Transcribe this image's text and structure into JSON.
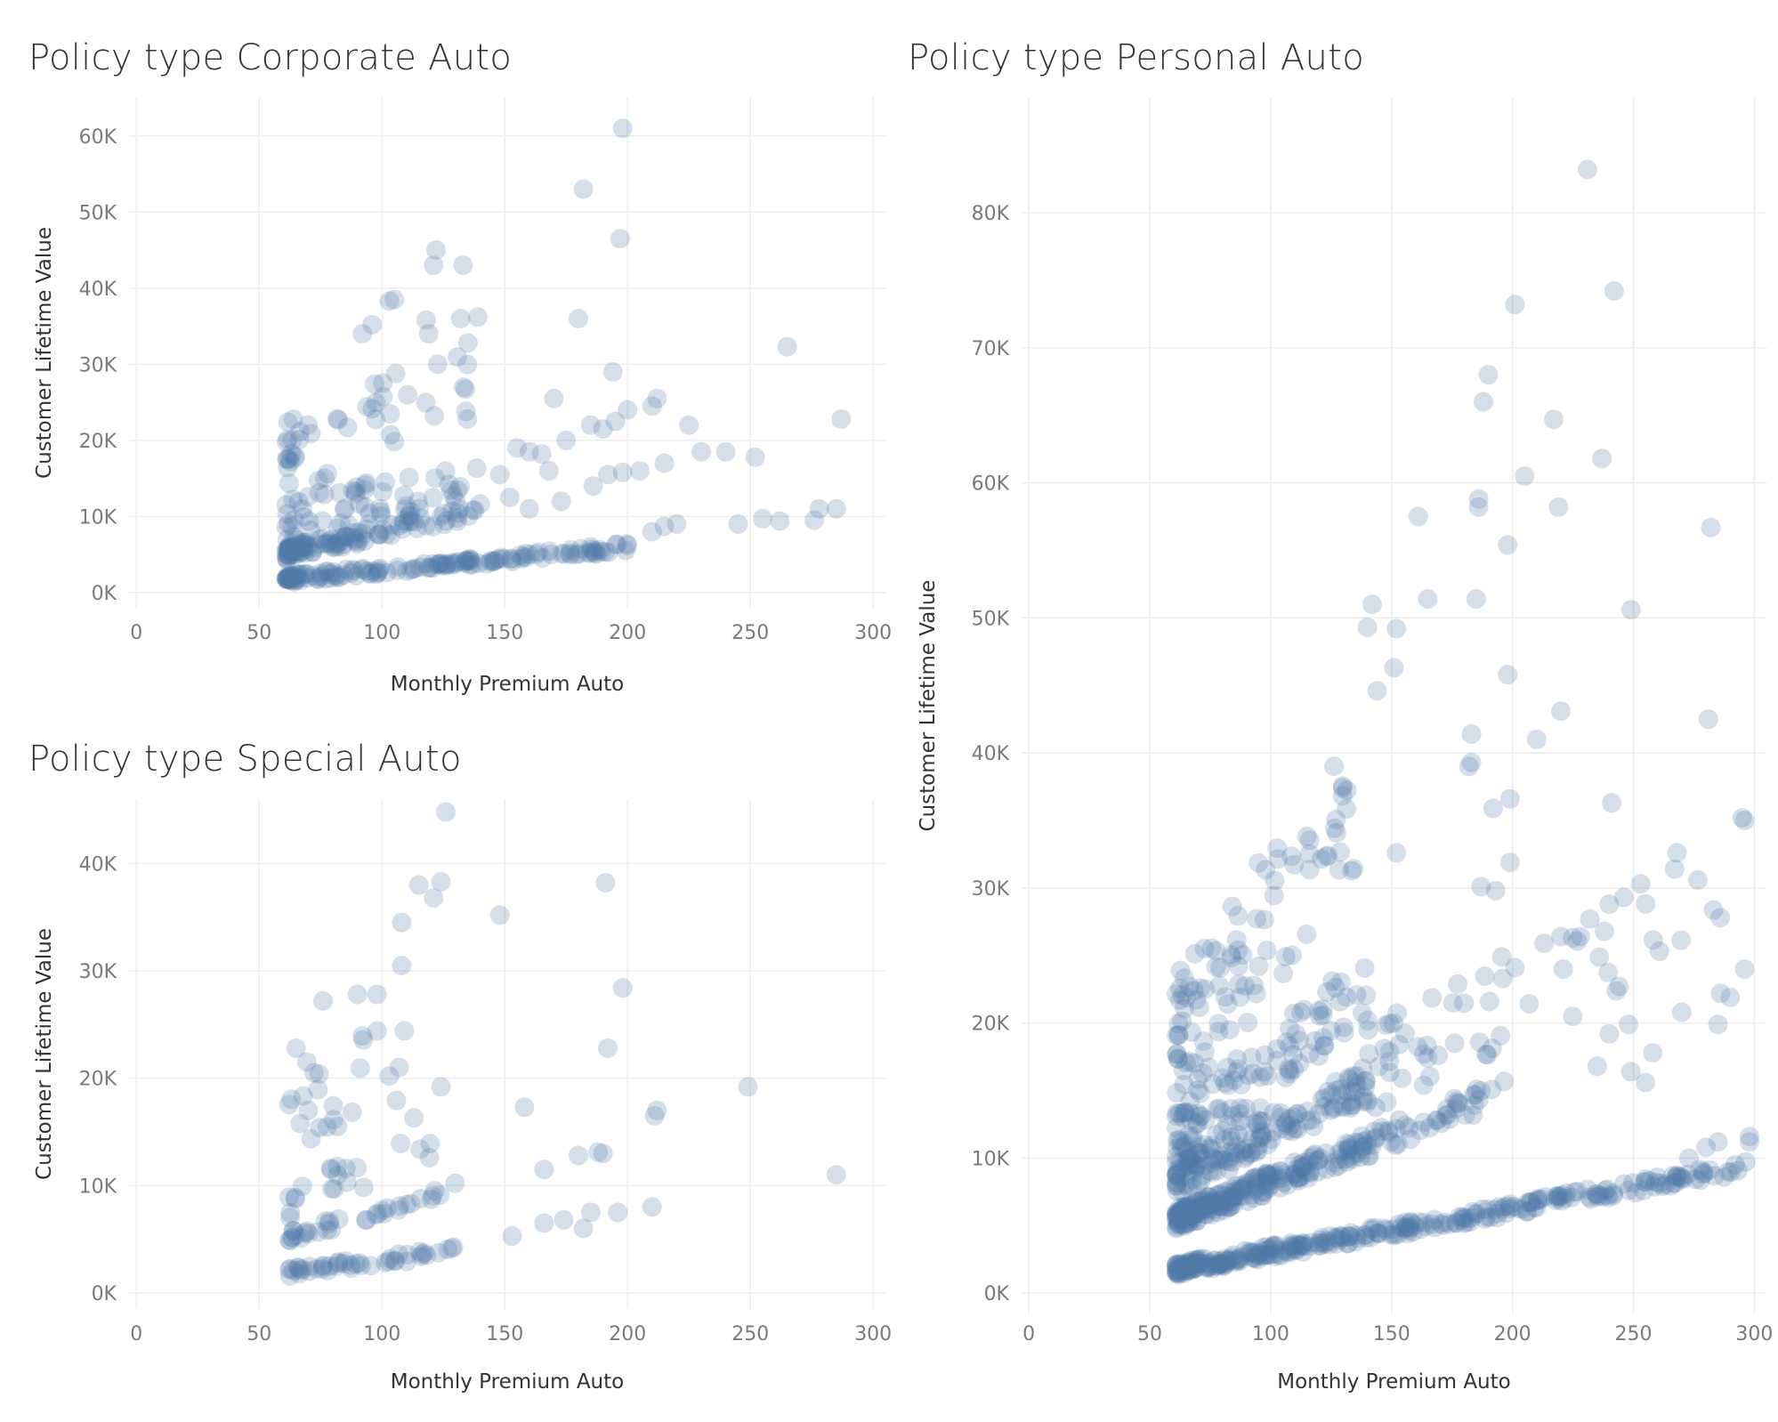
{
  "colors": {
    "marker": "#4e79a7",
    "grid": "#ededed",
    "title": "#333333",
    "tick": "#7a7a7a"
  },
  "chart_data": [
    {
      "type": "scatter",
      "id": "corporate",
      "title": "Policy type Corporate Auto",
      "xlabel": "Monthly Premium Auto",
      "ylabel": "Customer Lifetime Value",
      "xlim": [
        -3,
        305
      ],
      "ylim": [
        -2000,
        65000
      ],
      "xticks": [
        0,
        50,
        100,
        150,
        200,
        250,
        300
      ],
      "xtick_labels": [
        "0",
        "50",
        "100",
        "150",
        "200",
        "250",
        "300"
      ],
      "yticks": [
        0,
        10000,
        20000,
        30000,
        40000,
        50000,
        60000
      ],
      "ytick_labels": [
        "0K",
        "10K",
        "20K",
        "30K",
        "40K",
        "50K",
        "60K"
      ],
      "grid": true,
      "bands": [
        {
          "x0": 61,
          "x1": 200,
          "y0": 1800,
          "slope": 30,
          "n": 150,
          "jitter": 500
        },
        {
          "x0": 61,
          "x1": 140,
          "y0": 5200,
          "slope": 70,
          "n": 110,
          "jitter": 900
        },
        {
          "x0": 61,
          "x1": 140,
          "y0": 9500,
          "slope": 65,
          "n": 60,
          "jitter": 3000
        },
        {
          "x0": 61,
          "x1": 135,
          "y0": 18000,
          "slope": 130,
          "n": 45,
          "jitter": 5000
        }
      ],
      "points": [
        [
          198,
          61000
        ],
        [
          182,
          53000
        ],
        [
          197,
          46500
        ],
        [
          122,
          45000
        ],
        [
          133,
          43000
        ],
        [
          121,
          43000
        ],
        [
          105,
          38500
        ],
        [
          103,
          38300
        ],
        [
          118,
          35800
        ],
        [
          139,
          36200
        ],
        [
          132,
          36000
        ],
        [
          119,
          34000
        ],
        [
          96,
          35200
        ],
        [
          92,
          34000
        ],
        [
          135,
          32800
        ],
        [
          265,
          32300
        ],
        [
          194,
          29000
        ],
        [
          180,
          36000
        ],
        [
          160,
          18500
        ],
        [
          170,
          25500
        ],
        [
          185,
          22000
        ],
        [
          195,
          22500
        ],
        [
          210,
          24500
        ],
        [
          212,
          25500
        ],
        [
          225,
          22000
        ],
        [
          230,
          18500
        ],
        [
          240,
          18500
        ],
        [
          252,
          17800
        ],
        [
          245,
          9000
        ],
        [
          255,
          9700
        ],
        [
          262,
          9400
        ],
        [
          276,
          9500
        ],
        [
          278,
          11000
        ],
        [
          285,
          11000
        ],
        [
          287,
          22800
        ],
        [
          210,
          8000
        ],
        [
          215,
          8700
        ],
        [
          220,
          9000
        ],
        [
          175,
          20000
        ],
        [
          190,
          21500
        ],
        [
          200,
          24000
        ],
        [
          165,
          18200
        ],
        [
          168,
          16000
        ],
        [
          186,
          14000
        ],
        [
          192,
          15500
        ],
        [
          198,
          15800
        ],
        [
          205,
          16000
        ],
        [
          215,
          17000
        ],
        [
          173,
          12000
        ],
        [
          160,
          11000
        ],
        [
          152,
          12500
        ],
        [
          148,
          15500
        ],
        [
          155,
          19000
        ]
      ]
    },
    {
      "type": "scatter",
      "id": "special",
      "title": "Policy type Special Auto",
      "xlabel": "Monthly Premium Auto",
      "ylabel": "Customer Lifetime Value",
      "xlim": [
        -3,
        305
      ],
      "ylim": [
        -1500,
        46000
      ],
      "xticks": [
        0,
        50,
        100,
        150,
        200,
        250,
        300
      ],
      "xtick_labels": [
        "0",
        "50",
        "100",
        "150",
        "200",
        "250",
        "300"
      ],
      "yticks": [
        0,
        10000,
        20000,
        30000,
        40000
      ],
      "ytick_labels": [
        "0K",
        "10K",
        "20K",
        "30K",
        "40K"
      ],
      "grid": true,
      "bands": [
        {
          "x0": 62,
          "x1": 140,
          "y0": 1900,
          "slope": 29,
          "n": 45,
          "jitter": 400
        },
        {
          "x0": 62,
          "x1": 130,
          "y0": 5000,
          "slope": 68,
          "n": 35,
          "jitter": 700
        },
        {
          "x0": 62,
          "x1": 120,
          "y0": 8500,
          "slope": 80,
          "n": 20,
          "jitter": 1800
        },
        {
          "x0": 62,
          "x1": 110,
          "y0": 17000,
          "slope": 100,
          "n": 20,
          "jitter": 4000
        }
      ],
      "points": [
        [
          126,
          44800
        ],
        [
          115,
          38000
        ],
        [
          124,
          38300
        ],
        [
          191,
          38200
        ],
        [
          121,
          36800
        ],
        [
          108,
          34500
        ],
        [
          148,
          35200
        ],
        [
          108,
          30500
        ],
        [
          198,
          28400
        ],
        [
          192,
          22800
        ],
        [
          98,
          27800
        ],
        [
          90,
          27800
        ],
        [
          76,
          27200
        ],
        [
          249,
          19200
        ],
        [
          211,
          16500
        ],
        [
          212,
          17000
        ],
        [
          158,
          17300
        ],
        [
          166,
          11500
        ],
        [
          180,
          12800
        ],
        [
          188,
          13100
        ],
        [
          190,
          13000
        ],
        [
          174,
          6800
        ],
        [
          182,
          6000
        ],
        [
          185,
          7500
        ],
        [
          196,
          7500
        ],
        [
          210,
          8000
        ],
        [
          166,
          6500
        ],
        [
          153,
          5300
        ],
        [
          285,
          11000
        ],
        [
          124,
          19200
        ],
        [
          98,
          24400
        ],
        [
          103,
          20200
        ],
        [
          107,
          21000
        ],
        [
          113,
          16300
        ],
        [
          65,
          22800
        ],
        [
          70,
          17000
        ]
      ]
    },
    {
      "type": "scatter",
      "id": "personal",
      "title": "Policy type Personal Auto",
      "xlabel": "Monthly Premium Auto",
      "ylabel": "Customer Lifetime Value",
      "xlim": [
        -3,
        305
      ],
      "ylim": [
        -1500,
        88500
      ],
      "xticks": [
        0,
        50,
        100,
        150,
        200,
        250,
        300
      ],
      "xtick_labels": [
        "0",
        "50",
        "100",
        "150",
        "200",
        "250",
        "300"
      ],
      "yticks": [
        0,
        10000,
        20000,
        30000,
        40000,
        50000,
        60000,
        70000,
        80000
      ],
      "ytick_labels": [
        "0K",
        "10K",
        "20K",
        "30K",
        "40K",
        "50K",
        "60K",
        "70K",
        "80K"
      ],
      "grid": true,
      "bands": [
        {
          "x0": 61,
          "x1": 298,
          "y0": 1800,
          "slope": 32,
          "n": 330,
          "jitter": 450
        },
        {
          "x0": 61,
          "x1": 140,
          "y0": 5500,
          "slope": 70,
          "n": 230,
          "jitter": 800
        },
        {
          "x0": 61,
          "x1": 140,
          "y0": 8500,
          "slope": 90,
          "n": 140,
          "jitter": 1300
        },
        {
          "x0": 61,
          "x1": 140,
          "y0": 11000,
          "slope": 150,
          "n": 110,
          "jitter": 2600
        },
        {
          "x0": 61,
          "x1": 135,
          "y0": 18000,
          "slope": 250,
          "n": 100,
          "jitter": 5500
        },
        {
          "x0": 140,
          "x1": 200,
          "y0": 5500,
          "slope": 70,
          "n": 45,
          "jitter": 1000
        },
        {
          "x0": 140,
          "x1": 298,
          "y0": 10000,
          "slope": 85,
          "n": 55,
          "jitter": 3500
        }
      ],
      "points": [
        [
          231,
          83200
        ],
        [
          242,
          74200
        ],
        [
          201,
          73200
        ],
        [
          190,
          68000
        ],
        [
          188,
          66000
        ],
        [
          217,
          64700
        ],
        [
          237,
          61800
        ],
        [
          205,
          60500
        ],
        [
          161,
          57500
        ],
        [
          186,
          58800
        ],
        [
          186,
          58200
        ],
        [
          219,
          58200
        ],
        [
          282,
          56700
        ],
        [
          198,
          55400
        ],
        [
          165,
          51400
        ],
        [
          185,
          51400
        ],
        [
          249,
          50600
        ],
        [
          142,
          51000
        ],
        [
          152,
          49200
        ],
        [
          140,
          49300
        ],
        [
          151,
          46300
        ],
        [
          144,
          44600
        ],
        [
          198,
          45800
        ],
        [
          220,
          43100
        ],
        [
          281,
          42500
        ],
        [
          183,
          41400
        ],
        [
          210,
          41000
        ],
        [
          182,
          39000
        ],
        [
          183,
          39300
        ],
        [
          192,
          35900
        ],
        [
          199,
          36600
        ],
        [
          241,
          36300
        ],
        [
          295,
          35200
        ],
        [
          296,
          35000
        ],
        [
          152,
          32600
        ],
        [
          199,
          31900
        ],
        [
          268,
          32600
        ],
        [
          253,
          30300
        ],
        [
          267,
          31400
        ],
        [
          187,
          30100
        ],
        [
          193,
          29800
        ],
        [
          246,
          29300
        ],
        [
          240,
          28800
        ],
        [
          232,
          27700
        ],
        [
          238,
          26800
        ],
        [
          220,
          26400
        ],
        [
          228,
          26400
        ],
        [
          213,
          25900
        ],
        [
          201,
          24100
        ],
        [
          196,
          23300
        ],
        [
          296,
          24000
        ],
        [
          286,
          22200
        ],
        [
          290,
          21900
        ],
        [
          270,
          20800
        ],
        [
          285,
          19900
        ],
        [
          240,
          19200
        ],
        [
          248,
          19900
        ],
        [
          258,
          17800
        ],
        [
          235,
          16800
        ],
        [
          249,
          16400
        ],
        [
          255,
          15600
        ],
        [
          273,
          10000
        ],
        [
          280,
          10800
        ],
        [
          285,
          11200
        ],
        [
          298,
          11600
        ],
        [
          298,
          11200
        ]
      ]
    }
  ]
}
